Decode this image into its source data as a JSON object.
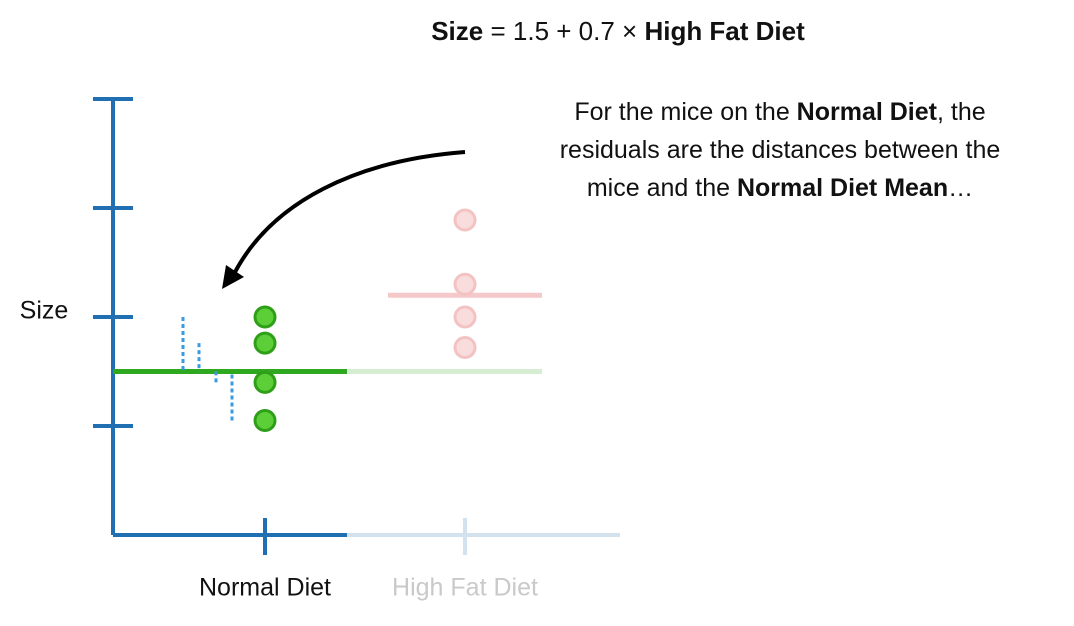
{
  "chart_data": {
    "type": "strip",
    "title": [
      {
        "text": "Size",
        "bold": true
      },
      {
        "text": " = 1.5 + 0.7 ",
        "bold": false
      },
      {
        "text": "×",
        "bold": false
      },
      {
        "text": " High Fat Diet",
        "bold": true
      }
    ],
    "annotation": [
      [
        {
          "text": "For the mice on the ",
          "bold": false
        },
        {
          "text": "Normal Diet",
          "bold": true
        },
        {
          "text": ", the",
          "bold": false
        }
      ],
      [
        {
          "text": "residuals are the distances between the",
          "bold": false
        }
      ],
      [
        {
          "text": "mice and the ",
          "bold": false
        },
        {
          "text": "Normal Diet Mean",
          "bold": true
        },
        {
          "text": "…",
          "bold": false
        }
      ]
    ],
    "ylabel": "Size",
    "categories": [
      "Normal Diet",
      "High Fat Diet"
    ],
    "category_colors": [
      "#111111",
      "#c9c9c9"
    ],
    "series": [
      {
        "color": "#5ccf38",
        "values": [
          2.0,
          1.76,
          1.4,
          1.05
        ]
      },
      {
        "color": "#f9dcdc",
        "values": [
          2.89,
          2.3,
          2.0,
          1.72
        ]
      }
    ],
    "means": [
      1.5,
      2.2
    ],
    "mean_colors": [
      "#2ea81f",
      "#f5c9c9"
    ],
    "residual_color": "#3a9be0",
    "ylim": [
      0,
      4
    ],
    "yticks": [
      1,
      2,
      3,
      4
    ]
  }
}
